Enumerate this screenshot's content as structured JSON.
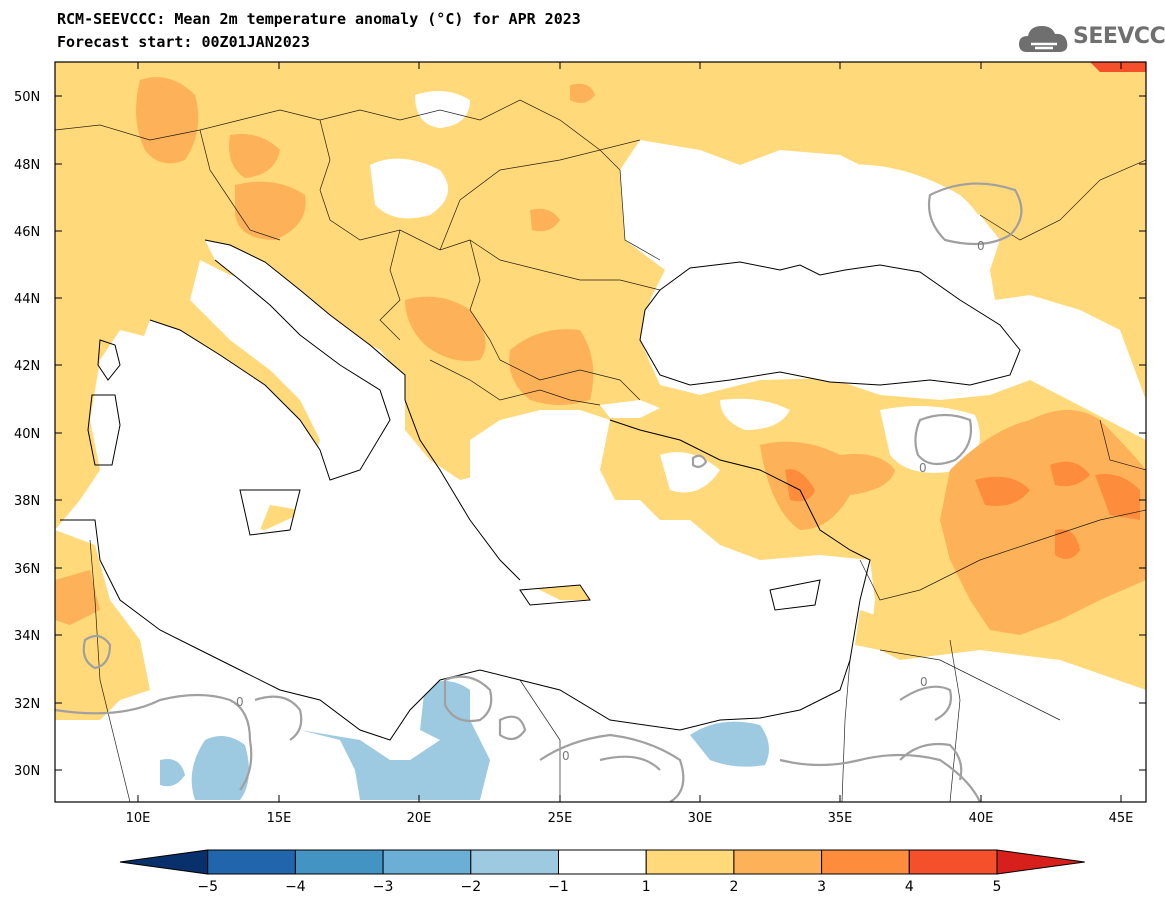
{
  "header": {
    "title_line1": "RCM-SEEVCCC: Mean 2m temperature anomaly (°C) for APR 2023",
    "title_line2": "Forecast start: 00Z01JAN2023"
  },
  "logo": {
    "text": "SEEVCCC",
    "icon": "cloud-icon",
    "color": "#6f6f6f"
  },
  "map": {
    "lat_ticks": [
      "50N",
      "48N",
      "46N",
      "44N",
      "42N",
      "40N",
      "38N",
      "36N",
      "34N",
      "32N",
      "30N"
    ],
    "lon_ticks": [
      "10E",
      "15E",
      "20E",
      "25E",
      "30E",
      "35E",
      "40E",
      "45E"
    ],
    "contour_label": "0"
  },
  "colorbar": {
    "labels": [
      "−5",
      "−4",
      "−3",
      "−2",
      "−1",
      "1",
      "2",
      "3",
      "4",
      "5"
    ],
    "colors": [
      "#08306b",
      "#2166ac",
      "#4393c3",
      "#6baed6",
      "#9ecae1",
      "#ffffff",
      "#ffd97a",
      "#fdb25a",
      "#fd8c3c",
      "#f3502b",
      "#d7201c"
    ]
  },
  "legend_colors": {
    "warm1": "#ffd97a",
    "warm2": "#fdb25a",
    "warm3": "#fd8c3c",
    "warm4": "#f3502b",
    "cool1": "#9ecae1",
    "contour": "#a0a0a0"
  }
}
